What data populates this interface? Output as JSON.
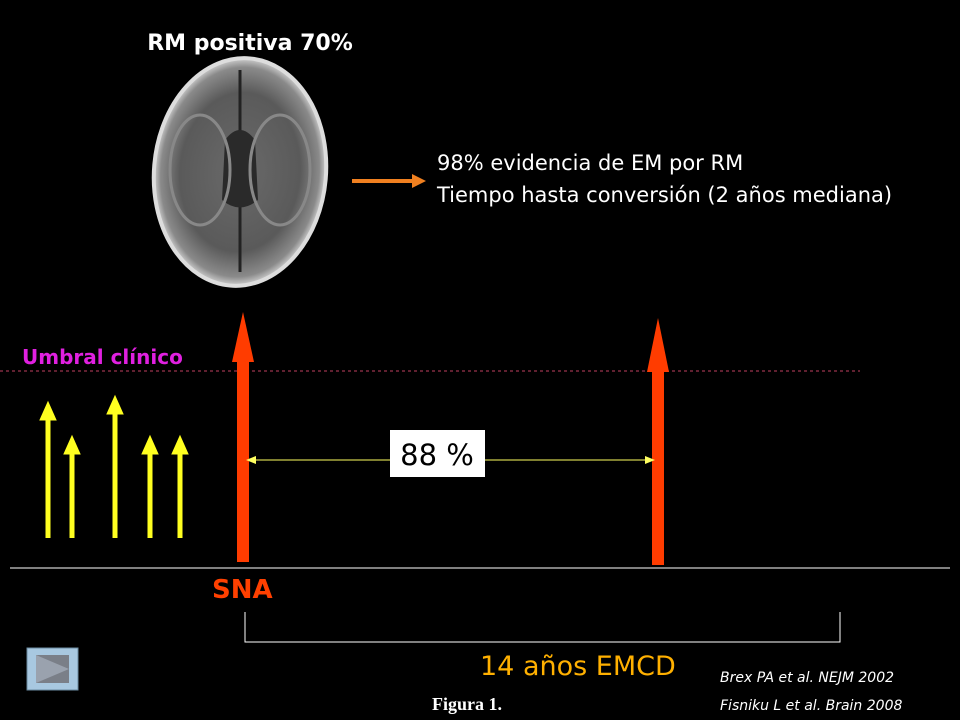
{
  "header": {
    "title": "RM positiva 70%"
  },
  "notes": [
    "98% evidencia de EM por RM",
    "Tiempo hasta conversión (2 años mediana)"
  ],
  "threshold": {
    "label": "Umbral clínico"
  },
  "interval": {
    "label": "88 %"
  },
  "event": {
    "label": "SNA"
  },
  "span": {
    "label": "14 años EMCD"
  },
  "references": [
    "Brex PA et al. NEJM 2002",
    "Fisniku L et al. Brain 2008"
  ],
  "caption": "Figura 1."
}
